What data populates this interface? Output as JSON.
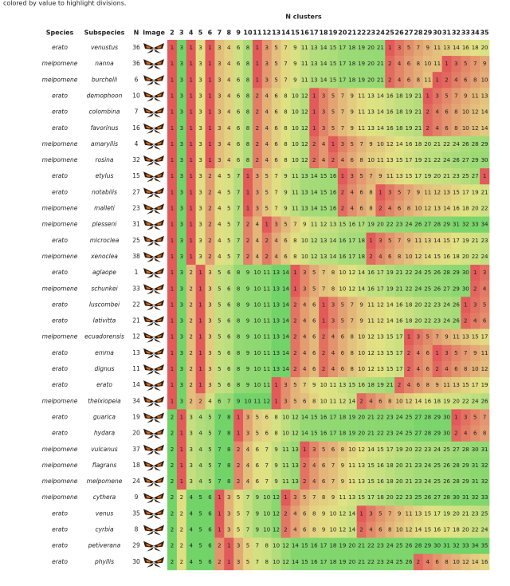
{
  "caption": "colored by value to highlight divisions.",
  "table": {
    "group_header": "N clusters",
    "headers": [
      "Species",
      "Subspecies",
      "N",
      "Image"
    ],
    "n_clusters": [
      2,
      3,
      4,
      5,
      6,
      7,
      8,
      9,
      10,
      11,
      12,
      13,
      14,
      15,
      16,
      17,
      18,
      19,
      20,
      21,
      22,
      23,
      24,
      25,
      26,
      27,
      28,
      29,
      30,
      31,
      32,
      33,
      34,
      35
    ],
    "rows": [
      {
        "species": "erato",
        "subspecies": "venustus",
        "n": 36,
        "clusters": [
          1,
          3,
          1,
          3,
          1,
          3,
          4,
          6,
          8,
          1,
          3,
          5,
          7,
          9,
          11,
          13,
          14,
          15,
          17,
          18,
          19,
          20,
          21,
          1,
          3,
          5,
          7,
          9,
          11,
          13,
          14,
          16,
          18,
          20
        ]
      },
      {
        "species": "melpomene",
        "subspecies": "nanna",
        "n": 36,
        "clusters": [
          1,
          3,
          1,
          3,
          1,
          3,
          4,
          6,
          8,
          1,
          3,
          5,
          7,
          9,
          11,
          13,
          14,
          15,
          17,
          18,
          19,
          20,
          21,
          2,
          4,
          6,
          8,
          10,
          11,
          1,
          3,
          5,
          7,
          9
        ]
      },
      {
        "species": "melpomene",
        "subspecies": "burchelli",
        "n": 6,
        "clusters": [
          1,
          3,
          1,
          3,
          1,
          3,
          4,
          6,
          8,
          1,
          3,
          5,
          7,
          9,
          11,
          13,
          14,
          15,
          17,
          18,
          19,
          20,
          21,
          2,
          4,
          6,
          8,
          11,
          1,
          2,
          4,
          6,
          8,
          10
        ]
      },
      {
        "species": "erato",
        "subspecies": "demophoon",
        "n": 10,
        "clusters": [
          1,
          3,
          1,
          3,
          1,
          3,
          4,
          6,
          8,
          2,
          4,
          6,
          8,
          10,
          12,
          1,
          3,
          5,
          7,
          9,
          11,
          13,
          14,
          16,
          18,
          19,
          21,
          1,
          3,
          5,
          7,
          9,
          11,
          13
        ]
      },
      {
        "species": "erato",
        "subspecies": "colombina",
        "n": 7,
        "clusters": [
          1,
          3,
          1,
          3,
          1,
          3,
          4,
          6,
          8,
          2,
          4,
          6,
          8,
          10,
          12,
          1,
          3,
          5,
          7,
          9,
          11,
          13,
          14,
          16,
          18,
          19,
          21,
          2,
          4,
          6,
          8,
          10,
          12,
          14
        ]
      },
      {
        "species": "erato",
        "subspecies": "favorinus",
        "n": 16,
        "clusters": [
          1,
          3,
          1,
          3,
          1,
          3,
          4,
          6,
          8,
          2,
          4,
          6,
          8,
          10,
          12,
          1,
          3,
          5,
          7,
          9,
          11,
          13,
          14,
          16,
          18,
          19,
          21,
          2,
          4,
          6,
          8,
          10,
          12,
          14
        ]
      },
      {
        "species": "melpomene",
        "subspecies": "amaryllis",
        "n": 4,
        "clusters": [
          1,
          3,
          1,
          3,
          1,
          3,
          4,
          6,
          8,
          2,
          4,
          6,
          8,
          10,
          12,
          2,
          4,
          1,
          3,
          5,
          7,
          9,
          10,
          12,
          14,
          16,
          18,
          20,
          21,
          22,
          24,
          26,
          28,
          29
        ]
      },
      {
        "species": "melpomene",
        "subspecies": "rosina",
        "n": 32,
        "clusters": [
          1,
          3,
          1,
          3,
          1,
          3,
          4,
          6,
          8,
          2,
          4,
          6,
          8,
          10,
          12,
          2,
          4,
          2,
          4,
          6,
          8,
          10,
          11,
          13,
          15,
          17,
          19,
          21,
          22,
          24,
          26,
          27,
          29,
          30
        ]
      },
      {
        "species": "erato",
        "subspecies": "etylus",
        "n": 15,
        "clusters": [
          1,
          3,
          1,
          3,
          2,
          4,
          5,
          7,
          1,
          3,
          5,
          7,
          9,
          11,
          13,
          14,
          15,
          16,
          1,
          3,
          5,
          7,
          9,
          11,
          13,
          15,
          17,
          19,
          20,
          21,
          23,
          25,
          27,
          1
        ]
      },
      {
        "species": "erato",
        "subspecies": "notabilis",
        "n": 27,
        "clusters": [
          1,
          3,
          1,
          3,
          2,
          4,
          5,
          7,
          1,
          3,
          5,
          7,
          9,
          11,
          13,
          14,
          15,
          16,
          2,
          4,
          6,
          8,
          1,
          3,
          5,
          7,
          9,
          11,
          12,
          13,
          15,
          17,
          19,
          21
        ]
      },
      {
        "species": "melpomene",
        "subspecies": "malleti",
        "n": 23,
        "clusters": [
          1,
          3,
          1,
          3,
          2,
          4,
          5,
          7,
          1,
          3,
          5,
          7,
          9,
          11,
          13,
          14,
          15,
          16,
          2,
          4,
          6,
          8,
          2,
          4,
          6,
          8,
          10,
          12,
          13,
          14,
          16,
          18,
          20,
          22
        ]
      },
      {
        "species": "melpomene",
        "subspecies": "plesseni",
        "n": 31,
        "clusters": [
          1,
          3,
          1,
          3,
          2,
          4,
          5,
          7,
          2,
          4,
          1,
          3,
          5,
          7,
          9,
          11,
          12,
          13,
          15,
          16,
          17,
          19,
          20,
          22,
          23,
          24,
          26,
          27,
          28,
          29,
          31,
          32,
          33,
          34
        ]
      },
      {
        "species": "erato",
        "subspecies": "microclea",
        "n": 25,
        "clusters": [
          1,
          3,
          1,
          3,
          2,
          4,
          5,
          7,
          2,
          4,
          2,
          4,
          6,
          8,
          10,
          12,
          13,
          14,
          16,
          17,
          18,
          1,
          3,
          5,
          7,
          9,
          11,
          13,
          14,
          15,
          17,
          19,
          21,
          23
        ]
      },
      {
        "species": "melpomene",
        "subspecies": "xenoclea",
        "n": 38,
        "clusters": [
          1,
          3,
          1,
          3,
          2,
          4,
          5,
          7,
          2,
          4,
          2,
          4,
          6,
          8,
          10,
          12,
          13,
          14,
          16,
          17,
          18,
          2,
          4,
          6,
          8,
          10,
          12,
          14,
          15,
          16,
          18,
          20,
          22,
          24
        ]
      },
      {
        "species": "erato",
        "subspecies": "aglaope",
        "n": 1,
        "clusters": [
          1,
          3,
          2,
          1,
          3,
          5,
          6,
          8,
          9,
          10,
          11,
          13,
          14,
          1,
          3,
          5,
          7,
          8,
          10,
          12,
          14,
          16,
          17,
          19,
          21,
          22,
          24,
          25,
          26,
          28,
          29,
          30,
          1,
          3
        ]
      },
      {
        "species": "melpomene",
        "subspecies": "schunkei",
        "n": 33,
        "clusters": [
          1,
          3,
          2,
          1,
          3,
          5,
          6,
          8,
          9,
          10,
          11,
          13,
          14,
          1,
          3,
          5,
          7,
          8,
          10,
          12,
          14,
          16,
          17,
          19,
          21,
          22,
          24,
          25,
          26,
          27,
          29,
          30,
          2,
          4
        ]
      },
      {
        "species": "erato",
        "subspecies": "luscombei",
        "n": 22,
        "clusters": [
          1,
          3,
          2,
          1,
          3,
          5,
          6,
          8,
          9,
          10,
          11,
          13,
          14,
          2,
          4,
          6,
          1,
          3,
          5,
          7,
          9,
          11,
          12,
          14,
          16,
          18,
          20,
          22,
          23,
          24,
          26,
          1,
          3,
          5
        ]
      },
      {
        "species": "erato",
        "subspecies": "lativitta",
        "n": 21,
        "clusters": [
          1,
          3,
          2,
          1,
          3,
          5,
          6,
          8,
          9,
          10,
          11,
          13,
          14,
          2,
          4,
          6,
          1,
          3,
          5,
          7,
          9,
          11,
          12,
          14,
          16,
          18,
          20,
          22,
          23,
          24,
          26,
          2,
          4,
          6
        ]
      },
      {
        "species": "melpomene",
        "subspecies": "ecuadorensis",
        "n": 12,
        "clusters": [
          1,
          3,
          2,
          1,
          3,
          5,
          6,
          8,
          9,
          10,
          11,
          13,
          14,
          2,
          4,
          6,
          2,
          4,
          6,
          8,
          10,
          12,
          13,
          15,
          17,
          1,
          3,
          5,
          7,
          9,
          11,
          13,
          15,
          17
        ]
      },
      {
        "species": "erato",
        "subspecies": "emma",
        "n": 13,
        "clusters": [
          1,
          3,
          2,
          1,
          3,
          5,
          6,
          8,
          9,
          10,
          11,
          13,
          14,
          2,
          4,
          6,
          2,
          4,
          6,
          8,
          10,
          12,
          13,
          15,
          17,
          2,
          4,
          6,
          1,
          3,
          5,
          7,
          9,
          11
        ]
      },
      {
        "species": "erato",
        "subspecies": "dignus",
        "n": 11,
        "clusters": [
          1,
          3,
          2,
          1,
          3,
          5,
          6,
          8,
          9,
          10,
          11,
          13,
          14,
          2,
          4,
          6,
          2,
          4,
          6,
          8,
          10,
          12,
          13,
          15,
          17,
          2,
          4,
          6,
          2,
          4,
          6,
          8,
          10,
          12
        ]
      },
      {
        "species": "erato",
        "subspecies": "erato",
        "n": 14,
        "clusters": [
          1,
          3,
          2,
          1,
          3,
          5,
          6,
          8,
          9,
          10,
          11,
          1,
          3,
          5,
          7,
          9,
          10,
          11,
          13,
          15,
          16,
          18,
          19,
          21,
          2,
          4,
          6,
          8,
          9,
          11,
          13,
          15,
          17,
          19
        ]
      },
      {
        "species": "melpomene",
        "subspecies": "thelxiopeia",
        "n": 34,
        "clusters": [
          1,
          3,
          2,
          2,
          4,
          6,
          7,
          9,
          10,
          11,
          12,
          1,
          3,
          5,
          6,
          8,
          10,
          11,
          12,
          14,
          2,
          4,
          6,
          8,
          10,
          12,
          14,
          16,
          18,
          19,
          20,
          22,
          24,
          26
        ]
      },
      {
        "species": "erato",
        "subspecies": "guarica",
        "n": 19,
        "clusters": [
          2,
          1,
          3,
          4,
          5,
          7,
          8,
          1,
          3,
          5,
          6,
          8,
          10,
          12,
          14,
          15,
          16,
          17,
          18,
          19,
          20,
          21,
          22,
          23,
          24,
          25,
          27,
          28,
          29,
          30,
          1,
          3,
          5,
          7
        ]
      },
      {
        "species": "erato",
        "subspecies": "hydara",
        "n": 20,
        "clusters": [
          2,
          1,
          3,
          4,
          5,
          7,
          8,
          1,
          3,
          5,
          6,
          8,
          10,
          12,
          14,
          15,
          16,
          17,
          18,
          19,
          20,
          21,
          22,
          23,
          24,
          25,
          27,
          28,
          29,
          30,
          2,
          4,
          6,
          8
        ]
      },
      {
        "species": "melpomene",
        "subspecies": "vulcanus",
        "n": 37,
        "clusters": [
          2,
          1,
          3,
          4,
          5,
          7,
          8,
          2,
          4,
          6,
          7,
          9,
          11,
          13,
          1,
          3,
          5,
          6,
          8,
          10,
          12,
          14,
          15,
          17,
          19,
          20,
          22,
          23,
          24,
          25,
          27,
          28,
          30,
          31
        ]
      },
      {
        "species": "melpomene",
        "subspecies": "flagrans",
        "n": 18,
        "clusters": [
          2,
          1,
          3,
          4,
          5,
          7,
          8,
          2,
          4,
          6,
          7,
          9,
          11,
          13,
          2,
          4,
          6,
          7,
          9,
          11,
          13,
          15,
          16,
          18,
          20,
          21,
          23,
          24,
          25,
          26,
          28,
          29,
          31,
          32
        ]
      },
      {
        "species": "melpomene",
        "subspecies": "melpomene",
        "n": 24,
        "clusters": [
          2,
          1,
          3,
          4,
          5,
          7,
          8,
          2,
          4,
          6,
          7,
          9,
          11,
          13,
          2,
          4,
          6,
          7,
          9,
          11,
          13,
          15,
          16,
          18,
          20,
          21,
          23,
          24,
          25,
          26,
          28,
          29,
          31,
          32
        ]
      },
      {
        "species": "melpomene",
        "subspecies": "cythera",
        "n": 9,
        "clusters": [
          2,
          2,
          4,
          5,
          6,
          1,
          3,
          5,
          7,
          9,
          10,
          12,
          1,
          3,
          5,
          7,
          8,
          9,
          11,
          13,
          15,
          17,
          18,
          20,
          22,
          23,
          25,
          26,
          27,
          28,
          30,
          31,
          32,
          33
        ]
      },
      {
        "species": "erato",
        "subspecies": "venus",
        "n": 35,
        "clusters": [
          2,
          2,
          4,
          5,
          6,
          1,
          3,
          5,
          7,
          9,
          10,
          12,
          2,
          4,
          6,
          8,
          9,
          10,
          12,
          14,
          1,
          3,
          5,
          7,
          9,
          11,
          13,
          15,
          17,
          19,
          20,
          21,
          23,
          25
        ]
      },
      {
        "species": "erato",
        "subspecies": "cyrbia",
        "n": 8,
        "clusters": [
          2,
          2,
          4,
          5,
          6,
          1,
          3,
          5,
          7,
          9,
          10,
          12,
          2,
          4,
          6,
          8,
          9,
          10,
          12,
          14,
          2,
          4,
          6,
          8,
          10,
          12,
          14,
          15,
          16,
          17,
          18,
          20,
          22,
          24
        ]
      },
      {
        "species": "erato",
        "subspecies": "petiverana",
        "n": 29,
        "clusters": [
          2,
          2,
          4,
          5,
          6,
          2,
          1,
          3,
          5,
          7,
          8,
          10,
          12,
          14,
          15,
          16,
          17,
          18,
          19,
          20,
          21,
          22,
          23,
          24,
          25,
          26,
          28,
          29,
          30,
          31,
          32,
          33,
          34,
          35
        ]
      },
      {
        "species": "erato",
        "subspecies": "phyllis",
        "n": 30,
        "clusters": [
          2,
          2,
          4,
          5,
          6,
          2,
          1,
          3,
          5,
          7,
          8,
          10,
          12,
          14,
          15,
          16,
          17,
          18,
          19,
          20,
          21,
          22,
          23,
          24,
          25,
          26,
          2,
          4,
          6,
          8,
          10,
          12,
          14,
          16
        ]
      }
    ]
  }
}
